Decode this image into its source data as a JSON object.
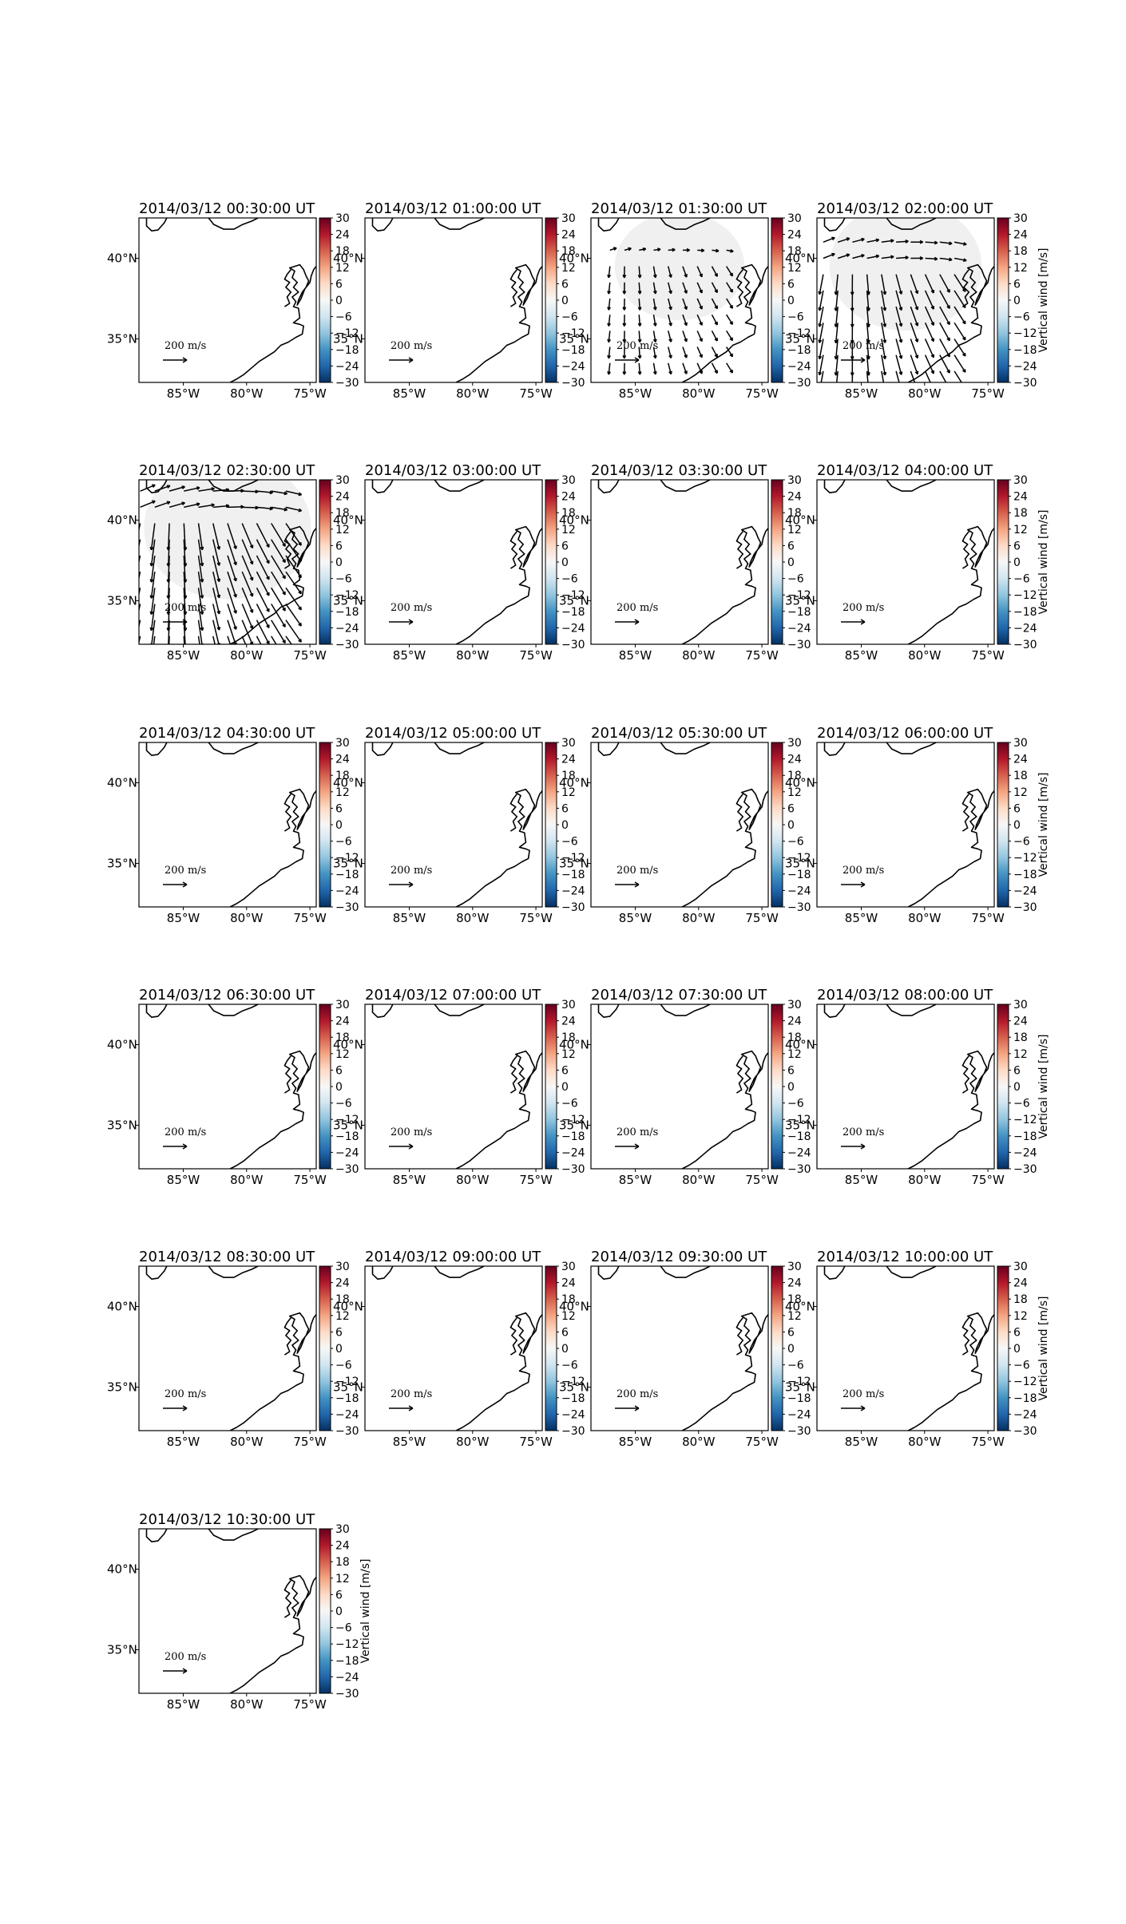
{
  "figure": {
    "domain_lon": [
      -88.5,
      -74.5
    ],
    "domain_lat": [
      32.3,
      42.5
    ],
    "lon_ticks": [
      "85°W",
      "80°W",
      "75°W"
    ],
    "lon_tick_values": [
      -85,
      -80,
      -75
    ],
    "lat_ticks": [
      "40°N",
      "35°N"
    ],
    "lat_tick_values": [
      40,
      35
    ],
    "colorbar": {
      "ticks": [
        "30",
        "24",
        "18",
        "12",
        "6",
        "0",
        "−6",
        "−12",
        "−18",
        "−24",
        "−30"
      ],
      "range": [
        -30,
        30
      ],
      "cmap": [
        "#67001f",
        "#b2182b",
        "#d6604d",
        "#f4a582",
        "#fddbc7",
        "#f7f7f7",
        "#d1e5f0",
        "#92c5de",
        "#4393c3",
        "#2166ac",
        "#053061"
      ],
      "label": "Vertical wind [m/s]"
    },
    "quiver_key_label": "200 m/s",
    "quiver_key_value": 200,
    "panels": [
      {
        "title": "2014/03/12 00:30:00 UT",
        "wind": "none"
      },
      {
        "title": "2014/03/12 01:00:00 UT",
        "wind": "none"
      },
      {
        "title": "2014/03/12 01:30:00 UT",
        "wind": "moderate"
      },
      {
        "title": "2014/03/12 02:00:00 UT",
        "wind": "strong"
      },
      {
        "title": "2014/03/12 02:30:00 UT",
        "wind": "strongest"
      },
      {
        "title": "2014/03/12 03:00:00 UT",
        "wind": "none"
      },
      {
        "title": "2014/03/12 03:30:00 UT",
        "wind": "none"
      },
      {
        "title": "2014/03/12 04:00:00 UT",
        "wind": "none"
      },
      {
        "title": "2014/03/12 04:30:00 UT",
        "wind": "none"
      },
      {
        "title": "2014/03/12 05:00:00 UT",
        "wind": "none"
      },
      {
        "title": "2014/03/12 05:30:00 UT",
        "wind": "none"
      },
      {
        "title": "2014/03/12 06:00:00 UT",
        "wind": "none"
      },
      {
        "title": "2014/03/12 06:30:00 UT",
        "wind": "none"
      },
      {
        "title": "2014/03/12 07:00:00 UT",
        "wind": "none"
      },
      {
        "title": "2014/03/12 07:30:00 UT",
        "wind": "none"
      },
      {
        "title": "2014/03/12 08:00:00 UT",
        "wind": "none"
      },
      {
        "title": "2014/03/12 08:30:00 UT",
        "wind": "none"
      },
      {
        "title": "2014/03/12 09:00:00 UT",
        "wind": "none"
      },
      {
        "title": "2014/03/12 09:30:00 UT",
        "wind": "none"
      },
      {
        "title": "2014/03/12 10:00:00 UT",
        "wind": "none"
      },
      {
        "title": "2014/03/12 10:30:00 UT",
        "wind": "none"
      }
    ]
  }
}
